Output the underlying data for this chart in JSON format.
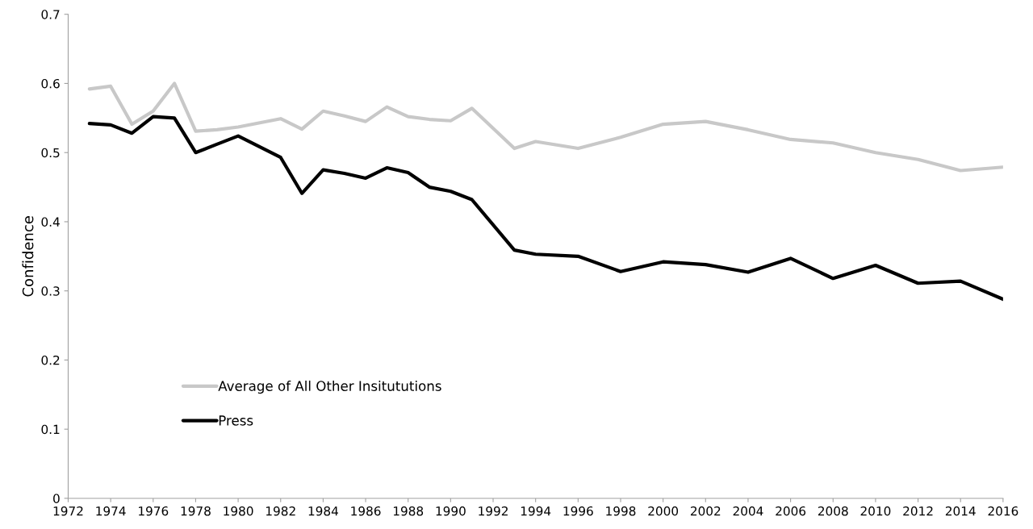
{
  "chart_data": {
    "type": "line",
    "ylabel": "Confidence",
    "xlim": [
      1972,
      2016
    ],
    "xticks": [
      1972,
      1974,
      1976,
      1978,
      1980,
      1982,
      1984,
      1986,
      1988,
      1990,
      1992,
      1994,
      1996,
      1998,
      2000,
      2002,
      2004,
      2006,
      2008,
      2010,
      2012,
      2014,
      2016
    ],
    "ylim": [
      0,
      0.7
    ],
    "yticks": [
      0,
      0.1,
      0.2,
      0.3,
      0.4,
      0.5,
      0.6,
      0.7
    ],
    "grid": false,
    "legend": "lower left",
    "marker": "none",
    "line_style": "solid",
    "x": [
      1973,
      1974,
      1975,
      1976,
      1977,
      1978,
      1979,
      1980,
      1982,
      1983,
      1984,
      1985,
      1986,
      1987,
      1988,
      1989,
      1990,
      1991,
      1993,
      1994,
      1996,
      1998,
      2000,
      2002,
      2004,
      2006,
      2008,
      2010,
      2012,
      2014,
      2016
    ],
    "series": [
      {
        "name": "Average of All Other Insitututions",
        "color": "#c8c8c8",
        "values": [
          0.592,
          0.596,
          0.541,
          0.56,
          0.6,
          0.531,
          0.533,
          0.537,
          0.549,
          0.534,
          0.56,
          0.553,
          0.545,
          0.566,
          0.552,
          0.548,
          0.546,
          0.564,
          0.506,
          0.516,
          0.506,
          0.522,
          0.541,
          0.545,
          0.533,
          0.519,
          0.514,
          0.5,
          0.49,
          0.474,
          0.479
        ]
      },
      {
        "name": "Press",
        "color": "#000000",
        "values": [
          0.542,
          0.54,
          0.528,
          0.552,
          0.55,
          0.5,
          0.512,
          0.524,
          0.493,
          0.441,
          0.475,
          0.47,
          0.463,
          0.478,
          0.471,
          0.45,
          0.444,
          0.432,
          0.359,
          0.353,
          0.35,
          0.328,
          0.342,
          0.338,
          0.327,
          0.347,
          0.318,
          0.337,
          0.311,
          0.314,
          0.288
        ]
      }
    ]
  }
}
